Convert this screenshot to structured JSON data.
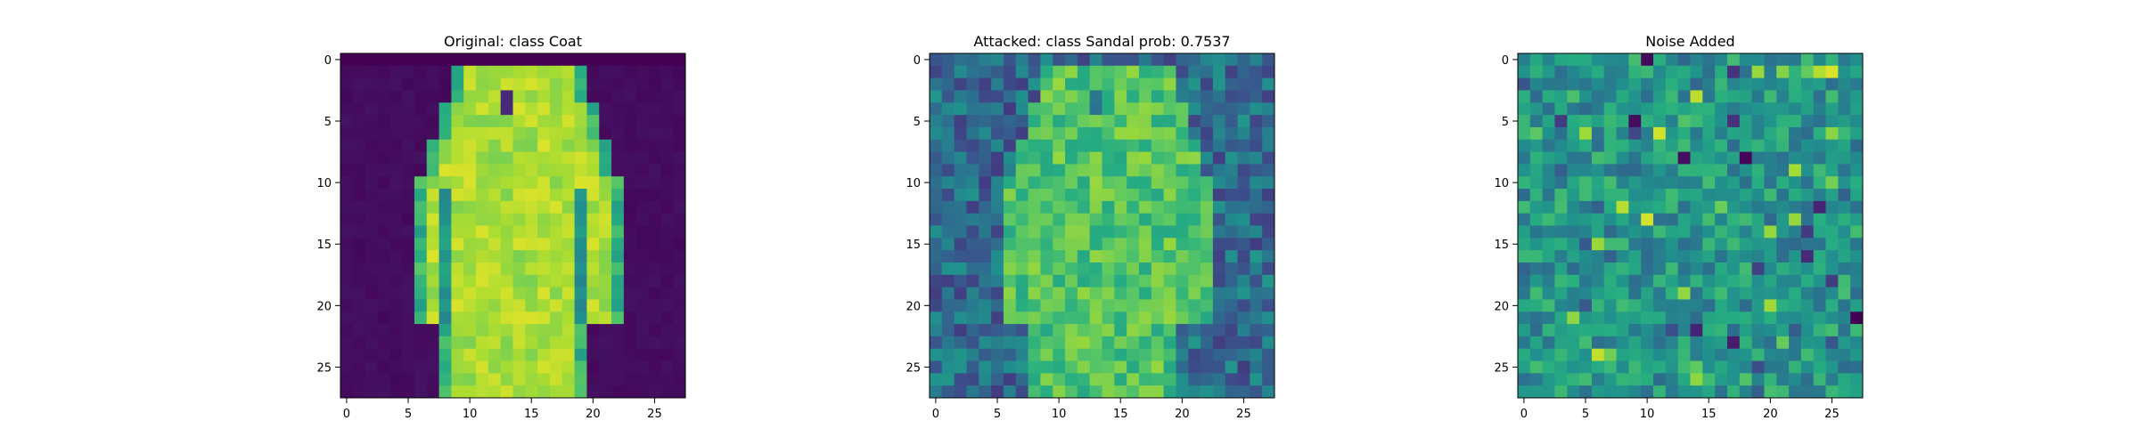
{
  "chart_data": [
    {
      "type": "heatmap",
      "title": "Original: class Coat",
      "xticks": [
        0,
        5,
        10,
        15,
        20,
        25
      ],
      "yticks": [
        0,
        5,
        10,
        15,
        20,
        25
      ],
      "xlim": [
        -0.5,
        27.5
      ],
      "ylim": [
        27.5,
        -0.5
      ],
      "colormap": "viridis",
      "value_range": [
        0,
        1
      ],
      "pattern": "coat",
      "seed": 11
    },
    {
      "type": "heatmap",
      "title": "Attacked: class Sandal prob: 0.7537",
      "xticks": [
        0,
        5,
        10,
        15,
        20,
        25
      ],
      "yticks": [
        0,
        5,
        10,
        15,
        20,
        25
      ],
      "xlim": [
        -0.5,
        27.5
      ],
      "ylim": [
        27.5,
        -0.5
      ],
      "colormap": "viridis",
      "value_range": [
        0,
        1
      ],
      "pattern": "attacked",
      "seed": 23
    },
    {
      "type": "heatmap",
      "title": "Noise Added",
      "xticks": [
        0,
        5,
        10,
        15,
        20,
        25
      ],
      "yticks": [
        0,
        5,
        10,
        15,
        20,
        25
      ],
      "xlim": [
        -0.5,
        27.5
      ],
      "ylim": [
        27.5,
        -0.5
      ],
      "colormap": "viridis",
      "value_range": [
        0,
        1
      ],
      "pattern": "noise",
      "seed": 37
    }
  ]
}
